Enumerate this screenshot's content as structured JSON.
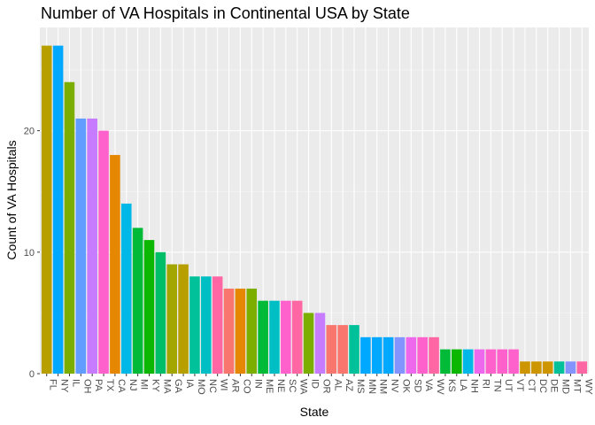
{
  "chart_data": {
    "type": "bar",
    "title": "Number of VA Hospitals in Continental USA by State",
    "xlabel": "State",
    "ylabel": "Count of VA Hospitals",
    "ylim": [
      0,
      28.5
    ],
    "yticks": [
      0,
      10,
      20
    ],
    "grid": true,
    "legend": "none",
    "categories": [
      "FL",
      "NY",
      "IL",
      "OH",
      "PA",
      "TX",
      "CA",
      "NJ",
      "MI",
      "KY",
      "MA",
      "GA",
      "IA",
      "MO",
      "NC",
      "WI",
      "AR",
      "CO",
      "IN",
      "ME",
      "NE",
      "SC",
      "WA",
      "ID",
      "OR",
      "AL",
      "AZ",
      "MS",
      "MN",
      "NM",
      "NV",
      "OK",
      "SD",
      "VA",
      "WV",
      "KS",
      "LA",
      "NH",
      "RI",
      "TN",
      "UT",
      "VT",
      "CT",
      "DC",
      "DE",
      "MD",
      "MT",
      "WY"
    ],
    "values": [
      27,
      27,
      24,
      21,
      21,
      20,
      18,
      14,
      12,
      11,
      10,
      9,
      9,
      8,
      8,
      8,
      7,
      7,
      7,
      6,
      6,
      6,
      6,
      5,
      5,
      4,
      4,
      4,
      3,
      3,
      3,
      3,
      3,
      3,
      3,
      2,
      2,
      2,
      2,
      2,
      2,
      2,
      1,
      1,
      1,
      1,
      1,
      1
    ],
    "colors": [
      "#B79F00",
      "#00A9FF",
      "#7CAE00",
      "#619CFF",
      "#C77CFF",
      "#FF61CC",
      "#E58700",
      "#00B8E7",
      "#00BA38",
      "#0CB702",
      "#00BE67",
      "#A3A500",
      "#B79F00",
      "#00C19A",
      "#00BFC4",
      "#FF67A4",
      "#F8766D",
      "#E58700",
      "#7CAE00",
      "#00BA38",
      "#00BFC4",
      "#FF61CC",
      "#FF67A4",
      "#7CAE00",
      "#C77CFF",
      "#F8766D",
      "#F8766D",
      "#00C19A",
      "#00A9FF",
      "#00A9FF",
      "#00A9FF",
      "#8494FF",
      "#ED68ED",
      "#FF61CC",
      "#FF67A4",
      "#00BA38",
      "#0CB702",
      "#00B8E7",
      "#ED68ED",
      "#FF61CC",
      "#FF61CC",
      "#FF61CC",
      "#CD9600",
      "#CD9600",
      "#CD9600",
      "#00C19A",
      "#8494FF",
      "#FF67A4"
    ]
  }
}
